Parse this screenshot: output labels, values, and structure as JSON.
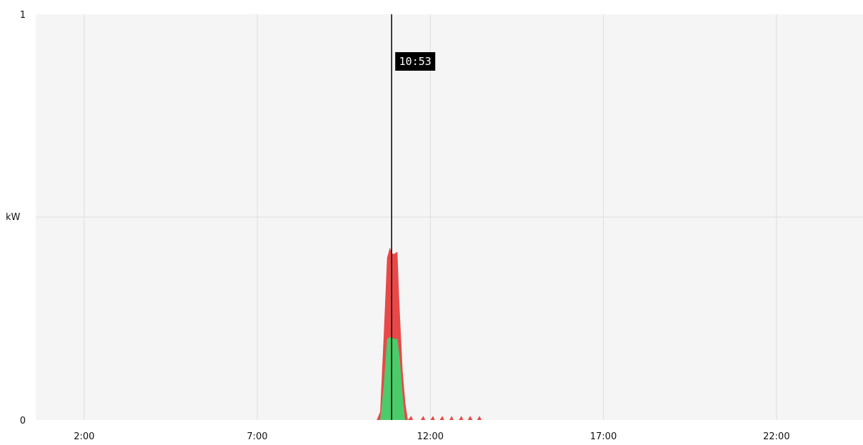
{
  "chart_data": {
    "type": "area",
    "ylabel": "kW",
    "ylim": [
      0,
      1
    ],
    "yticks": [
      0,
      1
    ],
    "xlim": [
      0.6,
      24.5
    ],
    "xticks": [
      {
        "value": 2,
        "label": "2:00"
      },
      {
        "value": 7,
        "label": "7:00"
      },
      {
        "value": 12,
        "label": "12:00"
      },
      {
        "value": 17,
        "label": "17:00"
      },
      {
        "value": 22,
        "label": "22:00"
      }
    ],
    "grid": true,
    "cursor": {
      "value": 10.883,
      "label": "10:53"
    },
    "series": [
      {
        "color": "#e94848",
        "points": [
          [
            10.45,
            0.0
          ],
          [
            10.55,
            0.02
          ],
          [
            10.65,
            0.2
          ],
          [
            10.75,
            0.4
          ],
          [
            10.83,
            0.425
          ],
          [
            10.9,
            0.41
          ],
          [
            10.97,
            0.41
          ],
          [
            11.05,
            0.415
          ],
          [
            11.1,
            0.3
          ],
          [
            11.2,
            0.12
          ],
          [
            11.28,
            0.04
          ],
          [
            11.35,
            0.0
          ],
          [
            11.45,
            0.01
          ],
          [
            11.5,
            0.0
          ],
          [
            11.72,
            0.0
          ],
          [
            11.8,
            0.01
          ],
          [
            11.85,
            0.0
          ],
          [
            12.0,
            0.0
          ],
          [
            12.08,
            0.01
          ],
          [
            12.13,
            0.0
          ],
          [
            12.27,
            0.0
          ],
          [
            12.35,
            0.01
          ],
          [
            12.4,
            0.0
          ],
          [
            12.55,
            0.0
          ],
          [
            12.62,
            0.01
          ],
          [
            12.67,
            0.0
          ],
          [
            12.82,
            0.0
          ],
          [
            12.9,
            0.01
          ],
          [
            12.95,
            0.0
          ],
          [
            13.08,
            0.0
          ],
          [
            13.15,
            0.01
          ],
          [
            13.22,
            0.0
          ],
          [
            13.35,
            0.0
          ],
          [
            13.42,
            0.01
          ],
          [
            13.48,
            0.0
          ]
        ]
      },
      {
        "color": "#4ccb6a",
        "points": [
          [
            10.55,
            0.0
          ],
          [
            10.65,
            0.08
          ],
          [
            10.75,
            0.2
          ],
          [
            10.85,
            0.205
          ],
          [
            10.95,
            0.2
          ],
          [
            11.05,
            0.2
          ],
          [
            11.12,
            0.15
          ],
          [
            11.2,
            0.06
          ],
          [
            11.27,
            0.0
          ]
        ]
      }
    ]
  }
}
